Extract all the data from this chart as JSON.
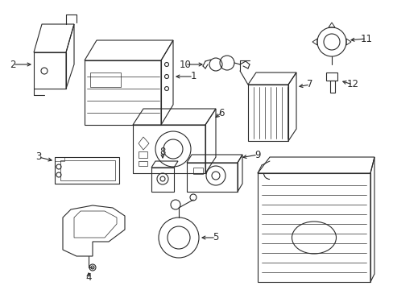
{
  "bg_color": "#ffffff",
  "lc": "#2a2a2a",
  "lw": 0.8,
  "figsize": [
    4.89,
    3.6
  ],
  "dpi": 100
}
